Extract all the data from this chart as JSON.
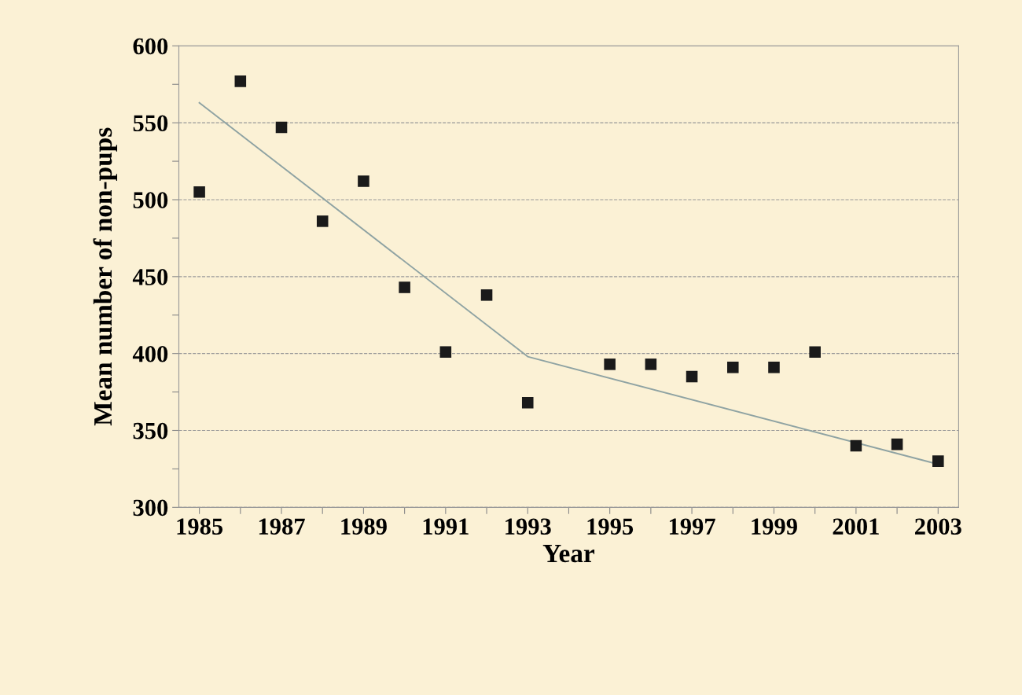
{
  "chart_data": {
    "type": "scatter",
    "xlabel": "Year",
    "ylabel": "Mean number of non-pups",
    "xlim": [
      1984.5,
      2003.5
    ],
    "ylim": [
      300,
      600
    ],
    "xticks": [
      1985,
      {
        "value": 1986,
        "label": null
      },
      1987,
      {
        "value": 1988,
        "label": null
      },
      1989,
      {
        "value": 1990,
        "label": null
      },
      1991,
      {
        "value": 1992,
        "label": null
      },
      1993,
      {
        "value": 1994,
        "label": null
      },
      1995,
      {
        "value": 1996,
        "label": null
      },
      1997,
      {
        "value": 1998,
        "label": null
      },
      1999,
      {
        "value": 2000,
        "label": null
      },
      2001,
      {
        "value": 2002,
        "label": null
      },
      2003
    ],
    "yticks": [
      300,
      {
        "value": 325,
        "label": null
      },
      350,
      {
        "value": 375,
        "label": null
      },
      400,
      {
        "value": 425,
        "label": null
      },
      450,
      {
        "value": 475,
        "label": null
      },
      500,
      {
        "value": 525,
        "label": null
      },
      550,
      {
        "value": 575,
        "label": null
      },
      600
    ],
    "grid": "y",
    "legend": false,
    "series": [
      {
        "color": "#1a1a1a",
        "marker": "square",
        "x": [
          1985,
          1986,
          1987,
          1988,
          1989,
          1990,
          1991,
          1992,
          1993,
          1995,
          1996,
          1997,
          1998,
          1999,
          2000,
          2001,
          2002,
          2003
        ],
        "values": [
          505,
          577,
          547,
          486,
          512,
          443,
          401,
          438,
          368,
          393,
          393,
          385,
          391,
          391,
          401,
          340,
          341,
          330
        ]
      },
      {
        "type": "line",
        "color": "#8fa3a3",
        "marker": "none",
        "line_style": "solid",
        "x": [
          1985,
          1993,
          2003
        ],
        "values": [
          563,
          398,
          328
        ]
      }
    ]
  }
}
